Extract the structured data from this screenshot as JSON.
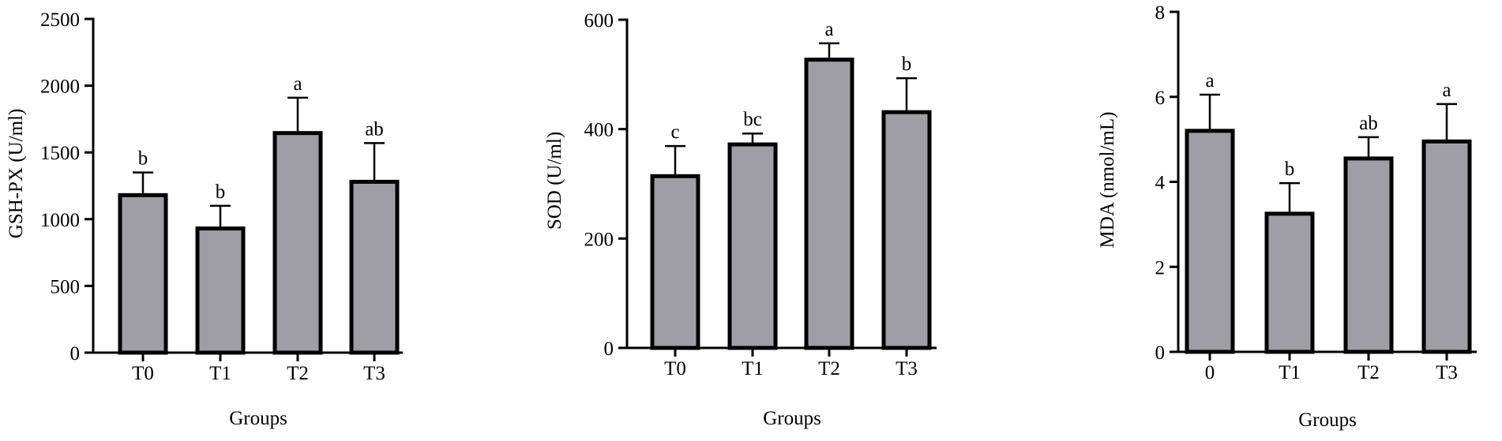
{
  "colors": {
    "bar_fill": "#9e9ea4",
    "bar_stroke": "#000000",
    "axis": "#000000"
  },
  "chart_data": [
    {
      "type": "bar",
      "xlabel": "Groups",
      "ylabel": "GSH-PX (U/ml)",
      "categories": [
        "T0",
        "T1",
        "T2",
        "T3"
      ],
      "values": [
        1180,
        930,
        1645,
        1280
      ],
      "errors": [
        170,
        170,
        265,
        290
      ],
      "letters": [
        "b",
        "b",
        "a",
        "ab"
      ],
      "ylim": [
        0,
        2500
      ],
      "yticks": [
        0,
        500,
        1000,
        1500,
        2000,
        2500
      ]
    },
    {
      "type": "bar",
      "xlabel": "Groups",
      "ylabel": "SOD (U/ml)",
      "categories": [
        "T0",
        "T1",
        "T2",
        "T3"
      ],
      "values": [
        314,
        372,
        527,
        431
      ],
      "errors": [
        55,
        20,
        30,
        62
      ],
      "letters": [
        "c",
        "bc",
        "a",
        "b"
      ],
      "ylim": [
        0,
        600
      ],
      "yticks": [
        0,
        200,
        400,
        600
      ]
    },
    {
      "type": "bar",
      "xlabel": "Groups",
      "ylabel": "MDA (nmol/mL)",
      "categories": [
        "0",
        "T1",
        "T2",
        "T3"
      ],
      "values": [
        5.2,
        3.25,
        4.55,
        4.95
      ],
      "errors": [
        0.85,
        0.72,
        0.5,
        0.88
      ],
      "letters": [
        "a",
        "b",
        "ab",
        "a"
      ],
      "ylim": [
        0,
        8
      ],
      "yticks": [
        0,
        2,
        4,
        6,
        8
      ]
    }
  ]
}
